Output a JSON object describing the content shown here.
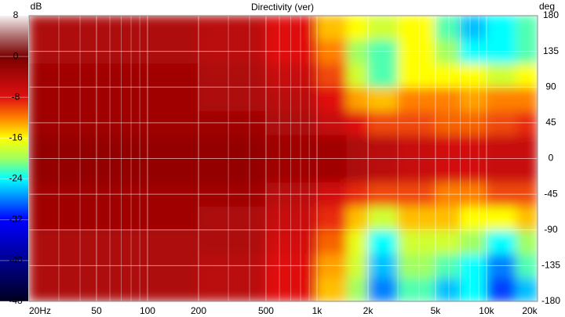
{
  "chart_data": {
    "type": "heatmap",
    "title": "Directivity (ver)",
    "colorbar_label": "dB",
    "y_label": "deg",
    "x_edges": [
      20,
      50,
      100,
      200,
      500,
      1000,
      1500,
      2000,
      3000,
      5000,
      7000,
      10000,
      15000,
      20000
    ],
    "y_edges": [
      -180,
      -150,
      -120,
      -90,
      -60,
      -30,
      0,
      30,
      60,
      90,
      120,
      150,
      180
    ],
    "z": [
      [
        -4,
        -4,
        -4,
        -5,
        -8,
        -14,
        -20,
        -28,
        -22,
        -26,
        -24,
        -30,
        -26
      ],
      [
        -4,
        -4,
        -4,
        -5,
        -8,
        -13,
        -18,
        -26,
        -20,
        -22,
        -24,
        -28,
        -22
      ],
      [
        -4,
        -4,
        -4,
        -4,
        -7,
        -11,
        -17,
        -24,
        -18,
        -18,
        -20,
        -24,
        -20
      ],
      [
        -3,
        -3,
        -3,
        -4,
        -6,
        -9,
        -14,
        -18,
        -14,
        -14,
        -16,
        -16,
        -14
      ],
      [
        -3,
        -3,
        -3,
        -3,
        -5,
        -7,
        -9,
        -10,
        -10,
        -12,
        -12,
        -10,
        -10
      ],
      [
        -2,
        -2,
        -2,
        -2,
        -3,
        -3,
        -4,
        -5,
        -6,
        -7,
        -7,
        -6,
        -6
      ],
      [
        -2,
        -2,
        -2,
        -2,
        -3,
        -3,
        -4,
        -5,
        -6,
        -7,
        -7,
        -6,
        -6
      ],
      [
        -3,
        -3,
        -3,
        -3,
        -4,
        -6,
        -8,
        -10,
        -10,
        -11,
        -11,
        -10,
        -9
      ],
      [
        -3,
        -3,
        -3,
        -4,
        -5,
        -8,
        -13,
        -14,
        -12,
        -12,
        -13,
        -12,
        -12
      ],
      [
        -3,
        -3,
        -3,
        -4,
        -6,
        -10,
        -18,
        -22,
        -16,
        -16,
        -16,
        -18,
        -16
      ],
      [
        -4,
        -4,
        -4,
        -5,
        -8,
        -12,
        -20,
        -22,
        -16,
        -20,
        -24,
        -24,
        -22
      ],
      [
        -4,
        -4,
        -4,
        -5,
        -8,
        -14,
        -16,
        -18,
        -16,
        -22,
        -26,
        -24,
        -22
      ]
    ],
    "log_x": true,
    "xlim": [
      20,
      20000
    ],
    "ylim": [
      -180,
      180
    ],
    "zlim": [
      -48,
      8
    ],
    "xticks": [
      {
        "value": 20,
        "label": "20Hz"
      },
      50,
      100,
      200,
      500,
      {
        "value": 1000,
        "label": "1k"
      },
      {
        "value": 2000,
        "label": "2k"
      },
      {
        "value": 5000,
        "label": "5k"
      },
      {
        "value": 10000,
        "label": "10k"
      },
      {
        "value": 20000,
        "label": "20k"
      }
    ],
    "x_minor_ticks": [
      30,
      40,
      60,
      70,
      80,
      90,
      300,
      400,
      600,
      700,
      800,
      900,
      3000,
      4000,
      6000,
      7000,
      8000,
      9000
    ],
    "yticks": [
      180,
      135,
      90,
      45,
      0,
      -45,
      -90,
      -135,
      -180
    ],
    "zticks": [
      8,
      0,
      -8,
      -16,
      -24,
      -32,
      -40,
      -48
    ],
    "colorscale": [
      [
        8,
        "#f6f2f2"
      ],
      [
        4,
        "#b07070"
      ],
      [
        0,
        "#7a0000"
      ],
      [
        -8,
        "#e01010"
      ],
      [
        -12,
        "#ff8000"
      ],
      [
        -16,
        "#ffff00"
      ],
      [
        -20,
        "#a0ff60"
      ],
      [
        -24,
        "#00ffff"
      ],
      [
        -28,
        "#0080ff"
      ],
      [
        -32,
        "#0000ff"
      ],
      [
        -40,
        "#000090"
      ],
      [
        -48,
        "#000020"
      ]
    ],
    "grid": true
  }
}
